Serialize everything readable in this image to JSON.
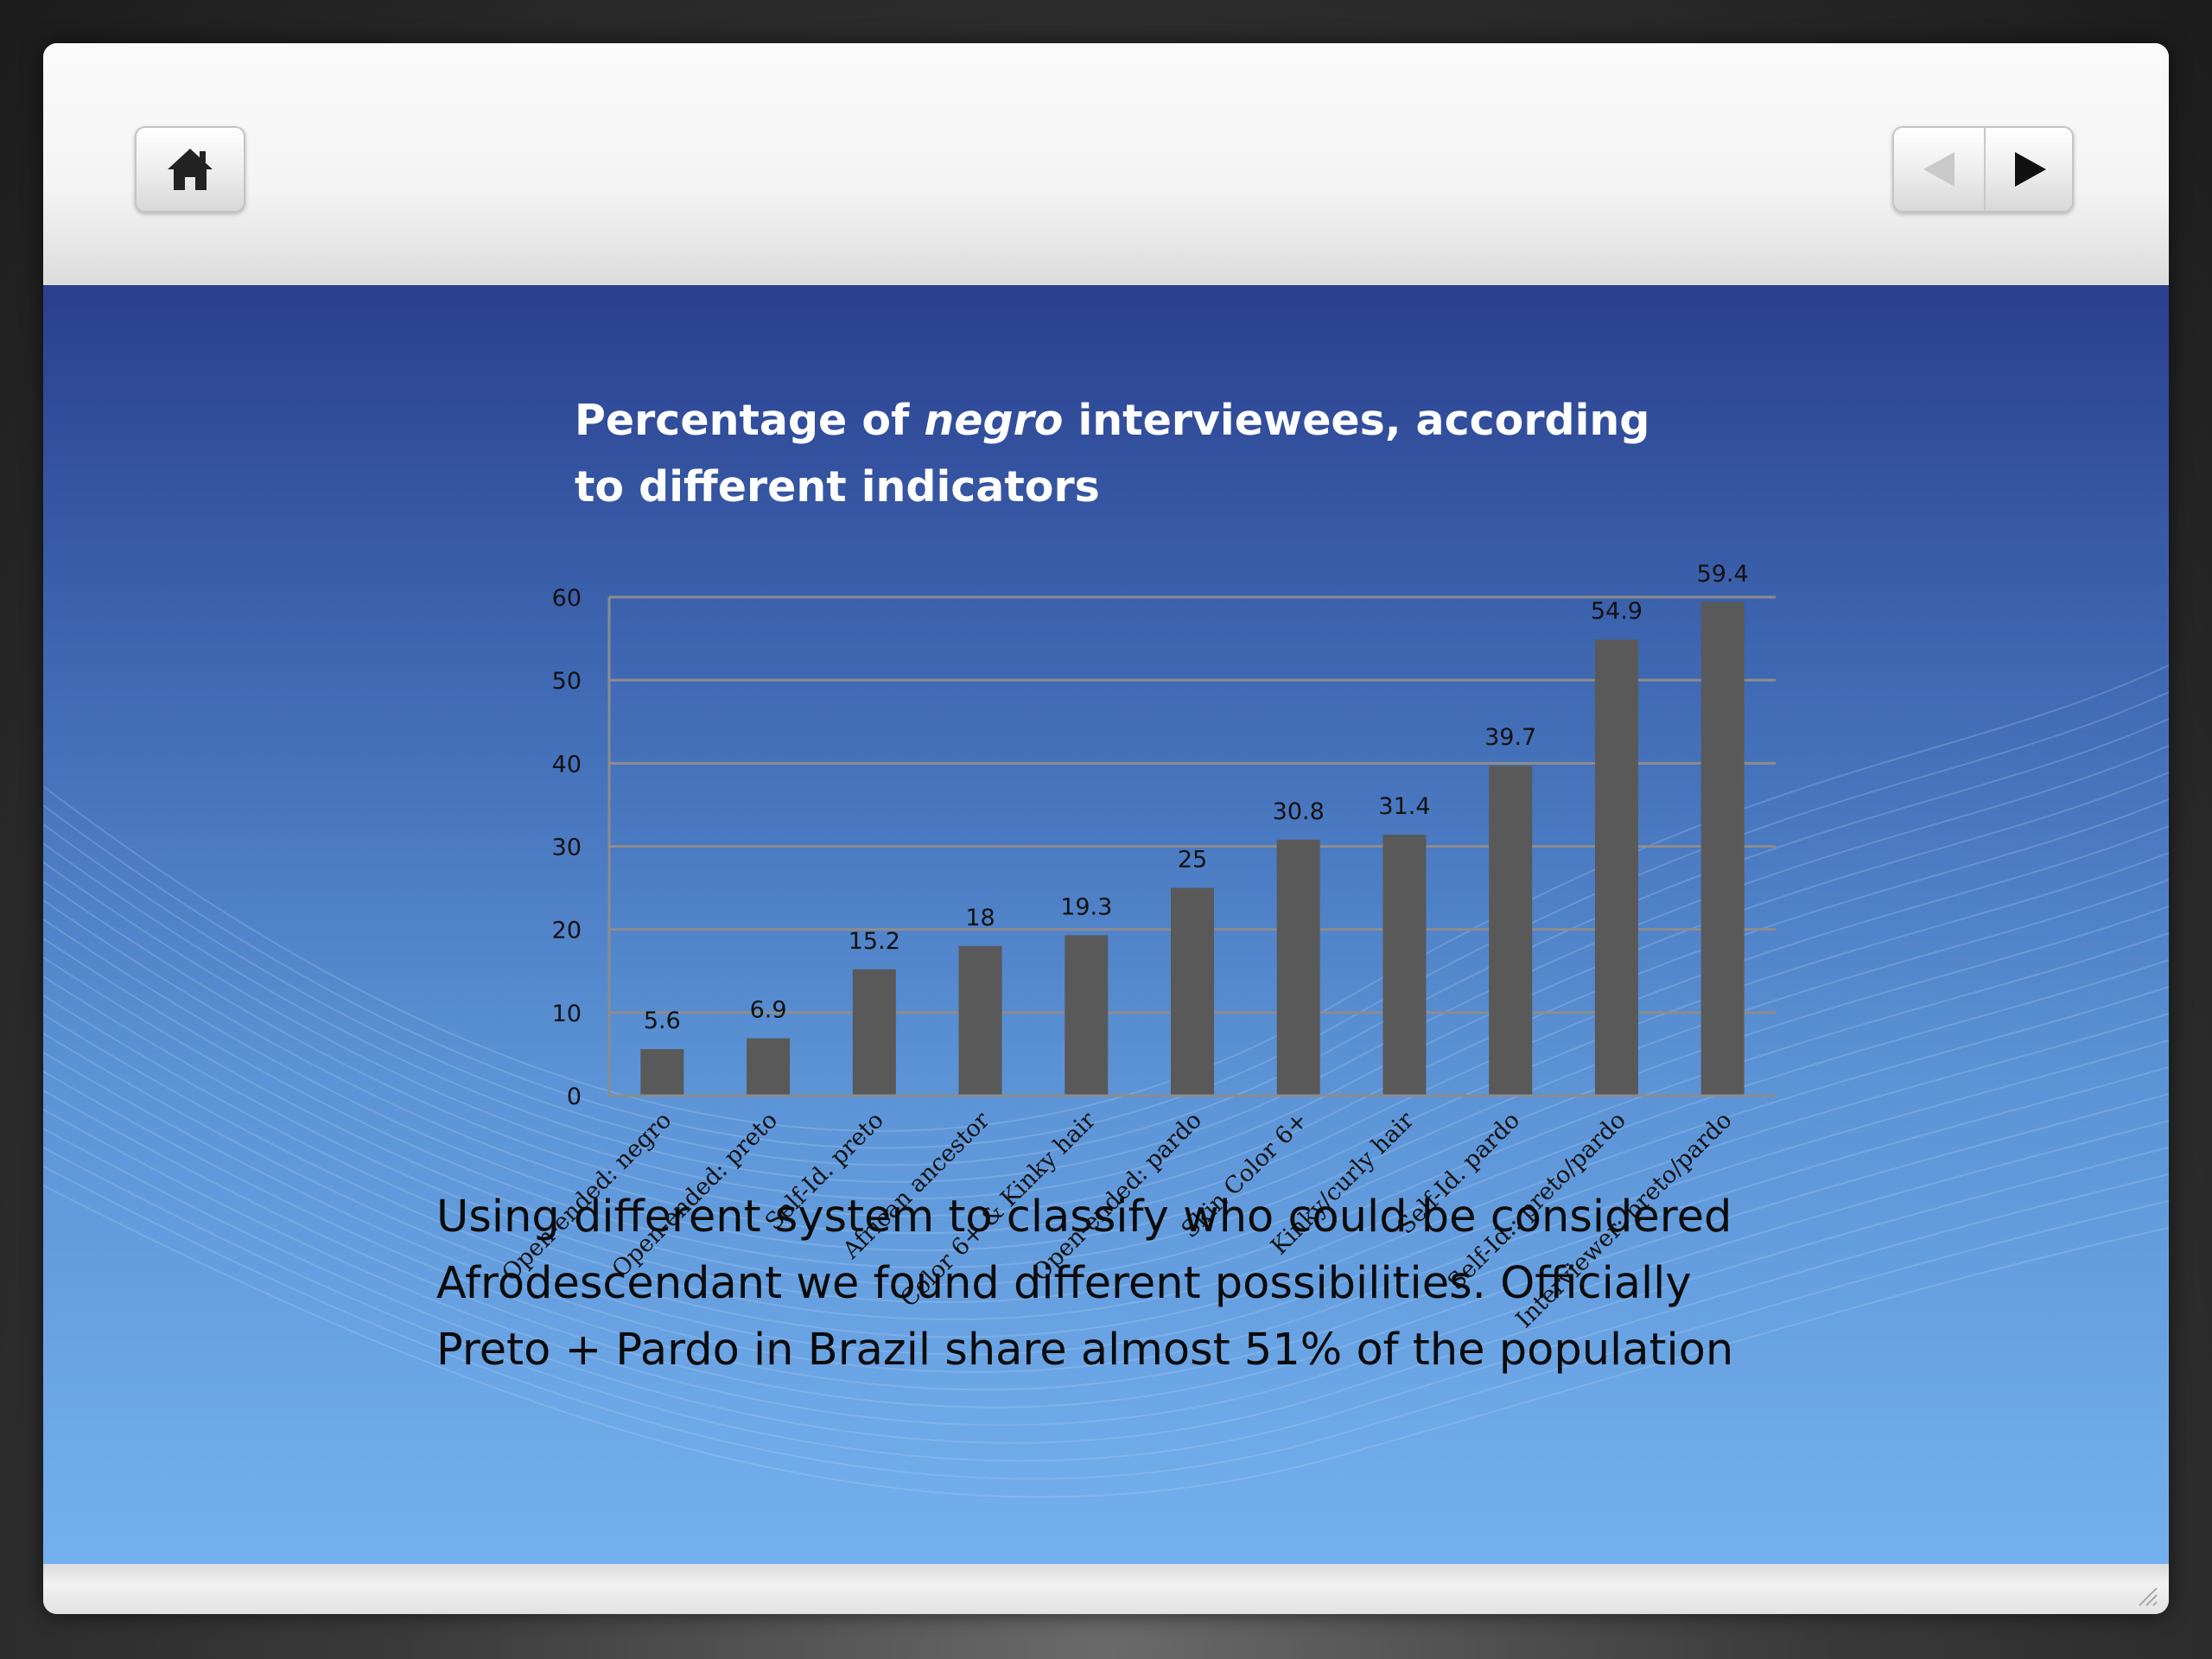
{
  "toolbar": {
    "home_icon": "home-icon",
    "prev_icon": "arrow-left-icon",
    "next_icon": "arrow-right-icon"
  },
  "slide": {
    "title_part1": "Percentage of ",
    "title_emph": "negro",
    "title_part2": " interviewees, according",
    "title_line2": "to different indicators",
    "caption_lines": [
      "Using different system to classify who could be considered",
      "Afrodescendant we found different possibilities. Officially",
      "Preto + Pardo in Brazil share almost 51% of the population"
    ]
  },
  "chart_data": {
    "type": "bar",
    "categories": [
      "Open-ended: negro",
      "Open-ended: preto",
      "Self-Id. preto",
      "African ancestor",
      "Color 6+ & Kinky hair",
      "Open-ended: pardo",
      "Skin Color 6+",
      "Kinky/curly hair",
      "Self-Id. pardo",
      "Self-Id.: preto/pardo",
      "Interviewer: preto/pardo"
    ],
    "values": [
      5.6,
      6.9,
      15.2,
      18,
      19.3,
      25,
      30.8,
      31.4,
      39.7,
      54.9,
      59.4
    ],
    "value_labels": [
      "5.6",
      "6.9",
      "15.2",
      "18",
      "19.3",
      "25",
      "30.8",
      "31.4",
      "39.7",
      "54.9",
      "59.4"
    ],
    "yticks": [
      "0",
      "10",
      "20",
      "30",
      "40",
      "50",
      "60"
    ],
    "ylim": [
      0,
      60
    ],
    "grid": true,
    "bar_color": "#595959",
    "gridline_color": "#8c8c8c"
  }
}
